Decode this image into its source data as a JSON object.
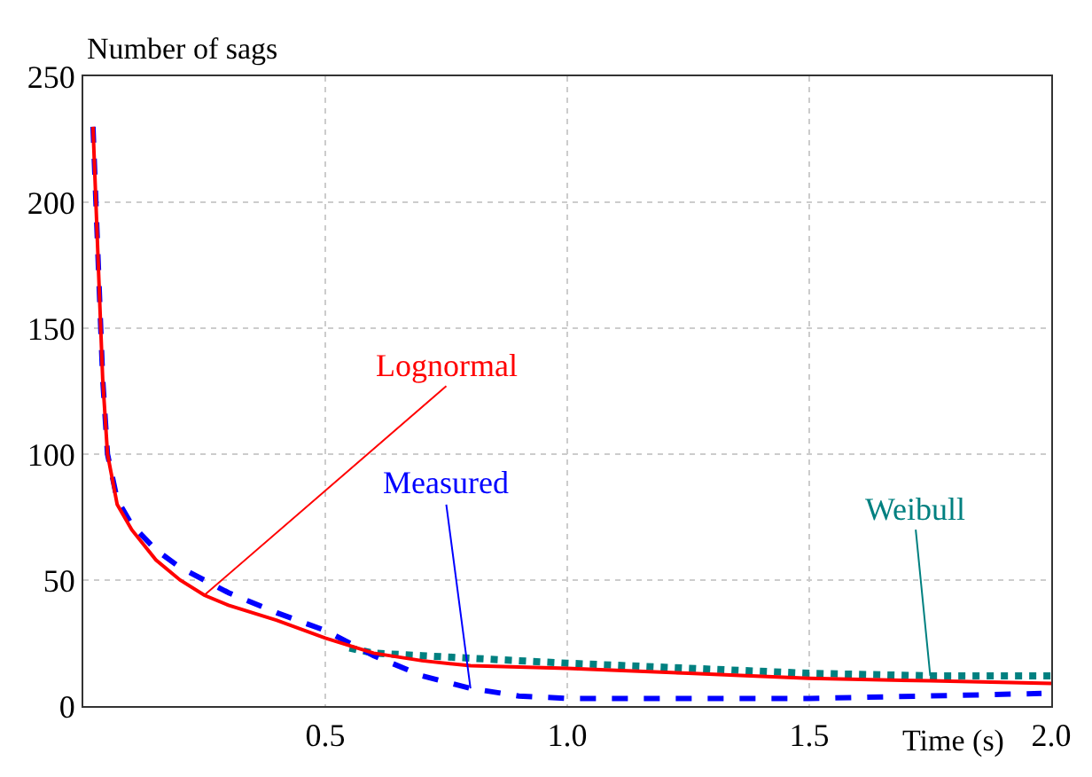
{
  "chart_data": {
    "type": "line",
    "xlabel": "Time (s)",
    "ylabel": "Number of sags",
    "xlim": [
      0,
      2
    ],
    "xticks": [
      0.5,
      {
        "value": 1,
        "label": "1.0"
      },
      1.5,
      {
        "value": 2,
        "label": "2.0"
      }
    ],
    "ylim": [
      0,
      250
    ],
    "yticks": [
      0,
      50,
      100,
      150,
      200,
      250
    ],
    "grid": true,
    "legend": false,
    "series": [
      {
        "name": "Lognormal",
        "color": "#ff0000",
        "line_style": "solid",
        "x": [
          0.02,
          0.03,
          0.04,
          0.05,
          0.07,
          0.1,
          0.15,
          0.2,
          0.25,
          0.3,
          0.4,
          0.5,
          0.6,
          0.7,
          0.8,
          1.0,
          1.25,
          1.5,
          1.75,
          2.0
        ],
        "values": [
          230,
          180,
          130,
          100,
          80,
          70,
          58,
          50,
          44,
          40,
          34,
          27,
          21,
          18,
          16,
          15,
          13,
          11,
          10,
          9
        ]
      },
      {
        "name": "Measured",
        "color": "#0000ff",
        "line_style": "dashed",
        "x": [
          0.02,
          0.03,
          0.04,
          0.05,
          0.07,
          0.1,
          0.15,
          0.2,
          0.25,
          0.3,
          0.4,
          0.5,
          0.55,
          0.6,
          0.7,
          0.8,
          0.9,
          1.0,
          1.25,
          1.5,
          1.75,
          1.98
        ],
        "values": [
          230,
          180,
          130,
          100,
          82,
          72,
          62,
          55,
          50,
          45,
          37,
          30,
          25,
          20,
          12,
          7,
          4,
          3,
          3,
          3,
          4,
          5
        ]
      },
      {
        "name": "Weibull",
        "color": "#008080",
        "line_style": "dotted",
        "x": [
          0.55,
          0.6,
          0.7,
          0.8,
          1.0,
          1.25,
          1.5,
          1.75,
          2.0
        ],
        "values": [
          23,
          21,
          20,
          19,
          17,
          15,
          13,
          12,
          12
        ]
      }
    ]
  }
}
